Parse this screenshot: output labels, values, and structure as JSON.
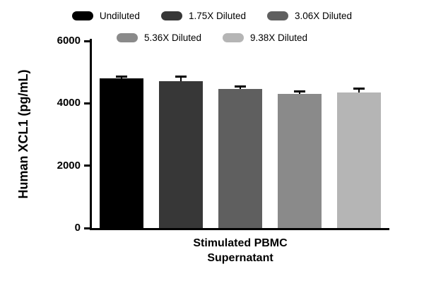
{
  "chart_data": {
    "type": "bar",
    "title": "",
    "ylabel": "Human XCL1 (pg/mL)",
    "xlabel_lines": [
      "Stimulated PBMC",
      "Supernatant"
    ],
    "categories": [
      "Undiluted",
      "1.75X Diluted",
      "3.06X Diluted",
      "5.36X Diluted",
      "9.38X Diluted"
    ],
    "values": [
      4790,
      4700,
      4460,
      4310,
      4340
    ],
    "errors_plus": [
      60,
      150,
      80,
      70,
      130
    ],
    "colors": [
      "#000000",
      "#373737",
      "#5f5f5f",
      "#8a8a8a",
      "#b5b5b5"
    ],
    "error_bar_color": "#000000",
    "ylim": [
      0,
      6000
    ],
    "yticks": [
      0,
      2000,
      4000,
      6000
    ],
    "grid": false,
    "legend_position": "top",
    "legend_rows": [
      [
        0,
        1,
        2
      ],
      [
        3,
        4
      ]
    ]
  }
}
